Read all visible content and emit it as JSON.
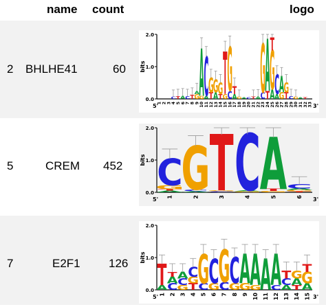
{
  "header": {
    "name": "name",
    "count": "count",
    "logo": "logo"
  },
  "rows": [
    {
      "index": "2",
      "name": "BHLHE41",
      "count": "60",
      "ylabel": "bits",
      "yticks": [
        "0.0",
        "1.0",
        "2.0"
      ],
      "xticks": [
        "1",
        "2",
        "3",
        "4",
        "5",
        "6",
        "7",
        "8",
        "9",
        "10",
        "11",
        "12",
        "13",
        "14",
        "15",
        "16",
        "17",
        "18",
        "19",
        "20",
        "21",
        "22",
        "23",
        "24",
        "25",
        "26",
        "27",
        "28",
        "29",
        "30",
        "31",
        "32",
        "33"
      ],
      "start": "5'",
      "end": "3'",
      "stacks": [
        [],
        [],
        [],
        [
          [
            "C",
            0.06
          ]
        ],
        [
          [
            "T",
            0.08
          ]
        ],
        [
          [
            "A",
            0.1
          ]
        ],
        [
          [
            "C",
            0.08
          ]
        ],
        [
          [
            "T",
            0.12
          ]
        ],
        [
          [
            "G",
            0.15
          ],
          [
            "A",
            0.1
          ]
        ],
        [
          [
            "G",
            0.1
          ],
          [
            "A",
            1.45
          ]
        ],
        [
          [
            "A",
            0.1
          ],
          [
            "C",
            1.2
          ]
        ],
        [
          [
            "T",
            0.2
          ],
          [
            "G",
            0.45
          ]
        ],
        [
          [
            "A",
            0.2
          ],
          [
            "G",
            0.4
          ]
        ],
        [
          [
            "T",
            0.15
          ],
          [
            "G",
            0.35
          ]
        ],
        [
          [
            "G",
            0.15
          ],
          [
            "T",
            1.3
          ]
        ],
        [
          [
            "C",
            0.25
          ],
          [
            "G",
            1.35
          ]
        ],
        [
          [
            "A",
            0.15
          ],
          [
            "T",
            0.25
          ]
        ],
        [
          [
            "G",
            0.06
          ]
        ],
        [
          [
            "A",
            0.05
          ]
        ],
        [
          [
            "C",
            0.05
          ]
        ],
        [
          [
            "T",
            0.06
          ]
        ],
        [
          [
            "A",
            0.07
          ]
        ],
        [
          [
            "C",
            0.2
          ],
          [
            "G",
            1.5
          ]
        ],
        [
          [
            "T",
            0.25
          ],
          [
            "A",
            1.6
          ]
        ],
        [
          [
            "A",
            0.3
          ],
          [
            "G",
            1.2
          ],
          [
            "T",
            0.4
          ]
        ],
        [
          [
            "A",
            0.15
          ],
          [
            "C",
            0.6
          ]
        ],
        [
          [
            "G",
            0.2
          ],
          [
            "A",
            0.5
          ]
        ],
        [
          [
            "T",
            0.2
          ],
          [
            "G",
            0.3
          ]
        ],
        [
          [
            "C",
            0.08
          ]
        ],
        [
          [
            "G",
            0.06
          ]
        ],
        [
          [
            "A",
            0.05
          ]
        ],
        [
          [
            "T",
            0.05
          ]
        ],
        []
      ]
    },
    {
      "index": "5",
      "name": "CREM",
      "count": "452",
      "ylabel": "bits",
      "yticks": [
        "0.0",
        "1.0",
        "2.0"
      ],
      "xticks": [
        "1",
        "2",
        "3",
        "4",
        "5",
        "6"
      ],
      "start": "5'",
      "end": "3'",
      "stacks": [
        [
          [
            "A",
            0.05
          ],
          [
            "T",
            0.05
          ],
          [
            "G",
            0.12
          ],
          [
            "C",
            0.82
          ]
        ],
        [
          [
            "A",
            0.03
          ],
          [
            "C",
            0.05
          ],
          [
            "G",
            1.34
          ]
        ],
        [
          [
            "C",
            0.03
          ],
          [
            "G",
            0.03
          ],
          [
            "T",
            1.72
          ]
        ],
        [
          [
            "G",
            0.03
          ],
          [
            "A",
            0.03
          ],
          [
            "C",
            1.74
          ]
        ],
        [
          [
            "G",
            0.04
          ],
          [
            "T",
            0.06
          ],
          [
            "A",
            1.6
          ]
        ],
        [
          [
            "T",
            0.03
          ],
          [
            "G",
            0.04
          ],
          [
            "A",
            0.05
          ],
          [
            "C",
            0.13
          ]
        ]
      ]
    },
    {
      "index": "7",
      "name": "E2F1",
      "count": "126",
      "ylabel": "bits",
      "yticks": [
        "0.0",
        "1.0",
        "2.0"
      ],
      "xticks": [
        "1",
        "2",
        "3",
        "4",
        "5",
        "6",
        "7",
        "8",
        "9",
        "10",
        "11",
        "12",
        "13",
        "14",
        "15"
      ],
      "start": "5'",
      "end": "3'",
      "stacks": [
        [
          [
            "A",
            0.15
          ],
          [
            "T",
            0.65
          ]
        ],
        [
          [
            "C",
            0.2
          ],
          [
            "A",
            0.2
          ],
          [
            "T",
            0.15
          ]
        ],
        [
          [
            "G",
            0.15
          ],
          [
            "C",
            0.2
          ],
          [
            "A",
            0.2
          ]
        ],
        [
          [
            "T",
            0.2
          ],
          [
            "G",
            0.2
          ],
          [
            "C",
            0.3
          ]
        ],
        [
          [
            "C",
            0.2
          ],
          [
            "G",
            0.9
          ]
        ],
        [
          [
            "G",
            0.2
          ],
          [
            "C",
            0.75
          ]
        ],
        [
          [
            "C",
            0.25
          ],
          [
            "G",
            1.0
          ]
        ],
        [
          [
            "G",
            0.2
          ],
          [
            "C",
            0.8
          ]
        ],
        [
          [
            "G",
            0.2
          ],
          [
            "A",
            0.9
          ]
        ],
        [
          [
            "G",
            0.15
          ],
          [
            "A",
            0.95
          ]
        ],
        [
          [
            "A",
            0.95
          ]
        ],
        [
          [
            "C",
            0.15
          ],
          [
            "A",
            0.95
          ]
        ],
        [
          [
            "A",
            0.15
          ],
          [
            "C",
            0.2
          ],
          [
            "T",
            0.25
          ]
        ],
        [
          [
            "T",
            0.15
          ],
          [
            "A",
            0.2
          ],
          [
            "G",
            0.25
          ]
        ],
        [
          [
            "A",
            0.2
          ],
          [
            "G",
            0.35
          ],
          [
            "T",
            0.25
          ]
        ]
      ]
    }
  ],
  "colors": {
    "A": "#0f9d3a",
    "C": "#2222dd",
    "G": "#f0a000",
    "T": "#e01818"
  }
}
